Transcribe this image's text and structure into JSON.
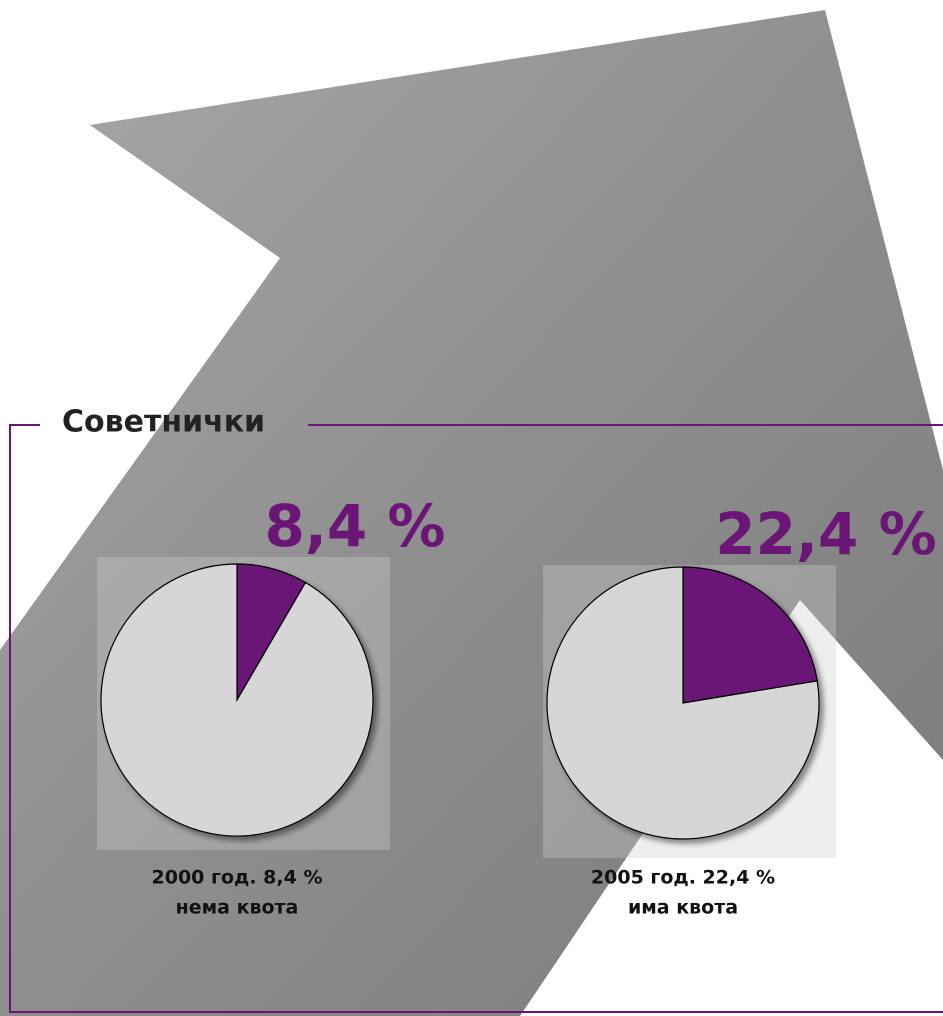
{
  "title": "Советнички",
  "chart_data": [
    {
      "type": "pie",
      "values": [
        8.4,
        91.6
      ],
      "value_labels": [
        "8,4 %",
        null
      ],
      "colors": [
        "#6b1677",
        "#d6d6d6"
      ],
      "caption": [
        "2000 год. 8,4 %",
        "нема квота"
      ]
    },
    {
      "type": "pie",
      "values": [
        22.4,
        77.6
      ],
      "value_labels": [
        "22,4 %",
        null
      ],
      "colors": [
        "#6b1677",
        "#d6d6d6"
      ],
      "caption": [
        "2005 год. 22,4 %",
        "има квота"
      ]
    }
  ]
}
